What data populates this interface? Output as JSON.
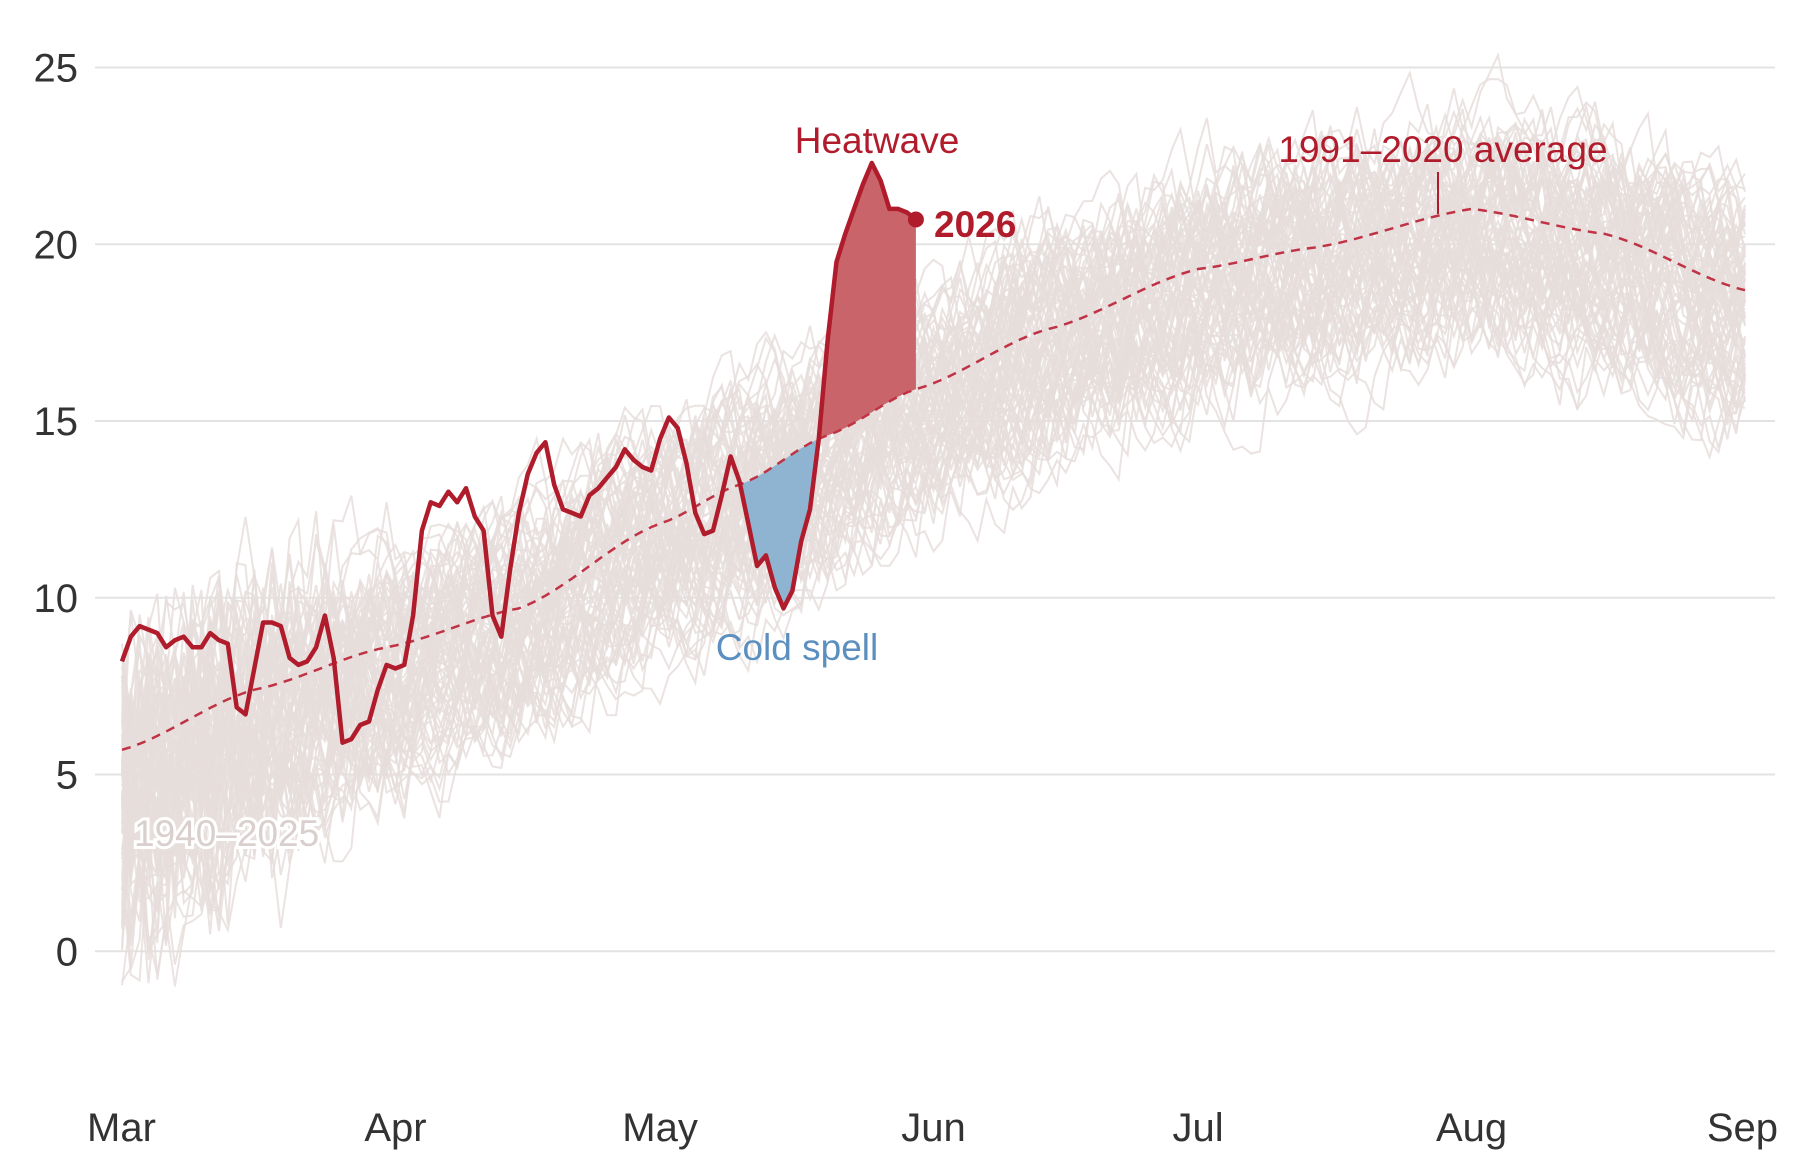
{
  "chart_data": {
    "type": "line",
    "title": "",
    "xlabel": "",
    "ylabel": "",
    "x_range": [
      "Mar 1",
      "Sep 1"
    ],
    "ylim": [
      -3.5,
      26
    ],
    "grid": "horizontal",
    "y_ticks": [
      0,
      5,
      10,
      15,
      20,
      25
    ],
    "x_ticks": [
      "Mar",
      "Apr",
      "May",
      "Jun",
      "Jul",
      "Aug",
      "Sep"
    ],
    "x_tick_days": [
      0,
      31,
      61,
      92,
      122,
      153,
      184
    ],
    "colors": {
      "current": "#b01c2b",
      "average": "#bf3345",
      "history": "#e6dedc",
      "heatwave_fill": "#c9646b",
      "cold_fill": "#8fb4d1",
      "cold_label": "#5b8fbf",
      "history_label": "#d9cfcd"
    },
    "annotations": {
      "heatwave": "Heatwave",
      "cold_spell": "Cold spell",
      "average": "1991–2020 average",
      "current_year": "2026",
      "history": "1940–2025"
    },
    "series": [
      {
        "name": "2026",
        "x_day": [
          0,
          1,
          2,
          3,
          4,
          5,
          6,
          7,
          8,
          9,
          10,
          11,
          12,
          13,
          14,
          15,
          16,
          17,
          18,
          19,
          20,
          21,
          22,
          23,
          24,
          25,
          26,
          27,
          28,
          29,
          30,
          31,
          32,
          33,
          34,
          35,
          36,
          37,
          38,
          39,
          40,
          41,
          42,
          43,
          44,
          45,
          46,
          47,
          48,
          49,
          50,
          51,
          52,
          53,
          54,
          55,
          56,
          57,
          58,
          59,
          60,
          61,
          62,
          63,
          64,
          65,
          66,
          67,
          68,
          69,
          70,
          71,
          72,
          73,
          74,
          75,
          76,
          77,
          78,
          79,
          80,
          81,
          82,
          83,
          84,
          85,
          86,
          87,
          88,
          89,
          90
        ],
        "values": [
          8.2,
          8.9,
          9.2,
          9.1,
          9.0,
          8.6,
          8.8,
          8.9,
          8.6,
          8.6,
          9.0,
          8.8,
          8.7,
          6.9,
          6.7,
          8.0,
          9.3,
          9.3,
          9.2,
          8.3,
          8.1,
          8.2,
          8.6,
          9.5,
          8.3,
          5.9,
          6.0,
          6.4,
          6.5,
          7.4,
          8.1,
          8.0,
          8.1,
          9.5,
          11.9,
          12.7,
          12.6,
          13.0,
          12.7,
          13.1,
          12.3,
          11.9,
          9.5,
          8.9,
          10.8,
          12.4,
          13.5,
          14.1,
          14.4,
          13.2,
          12.5,
          12.4,
          12.3,
          12.9,
          13.1,
          13.4,
          13.7,
          14.2,
          13.9,
          13.7,
          13.6,
          14.5,
          15.1,
          14.8,
          13.8,
          12.4,
          11.8,
          11.9,
          12.9,
          14.0,
          13.3,
          12.1,
          10.9,
          11.2,
          10.3,
          9.7,
          10.2,
          11.6,
          12.5,
          14.5,
          17.3,
          19.5,
          20.3,
          21.0,
          21.7,
          22.3,
          21.8,
          21.0,
          21.0,
          20.9,
          20.7
        ]
      },
      {
        "name": "1991–2020 average",
        "x_day": [
          0,
          15,
          30,
          45,
          61,
          70,
          80,
          90,
          105,
          122,
          135,
          153,
          168,
          184
        ],
        "values": [
          5.7,
          7.4,
          8.6,
          9.7,
          12.1,
          13.2,
          14.6,
          15.9,
          17.6,
          19.3,
          19.9,
          21.0,
          20.3,
          18.7
        ]
      }
    ],
    "historical_years": {
      "first_year": 1940,
      "last_year": 2025
    }
  }
}
